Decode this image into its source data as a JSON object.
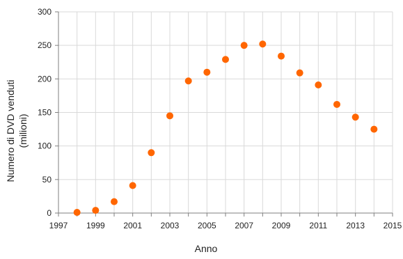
{
  "chart_data": {
    "type": "scatter",
    "title": "",
    "xlabel": "Anno",
    "ylabel": "Numero di DVD venduti",
    "ylabel_line2": "(milioni)",
    "xlim": [
      1997,
      2015
    ],
    "ylim": [
      0,
      300
    ],
    "x_ticks": [
      1997,
      1999,
      2001,
      2003,
      2005,
      2007,
      2009,
      2011,
      2013,
      2015
    ],
    "y_ticks": [
      0,
      50,
      100,
      150,
      200,
      250,
      300
    ],
    "grid": true,
    "legend": "none",
    "marker_color": "#FF6600",
    "series": [
      {
        "x": [
          1998,
          1999,
          2000,
          2001,
          2002,
          2003,
          2004,
          2005,
          2006,
          2007,
          2008,
          2009,
          2010,
          2011,
          2012,
          2013,
          2014
        ],
        "y": [
          1,
          4,
          17,
          41,
          90,
          145,
          197,
          210,
          229,
          250,
          252,
          234,
          209,
          191,
          162,
          143,
          125
        ]
      }
    ]
  }
}
